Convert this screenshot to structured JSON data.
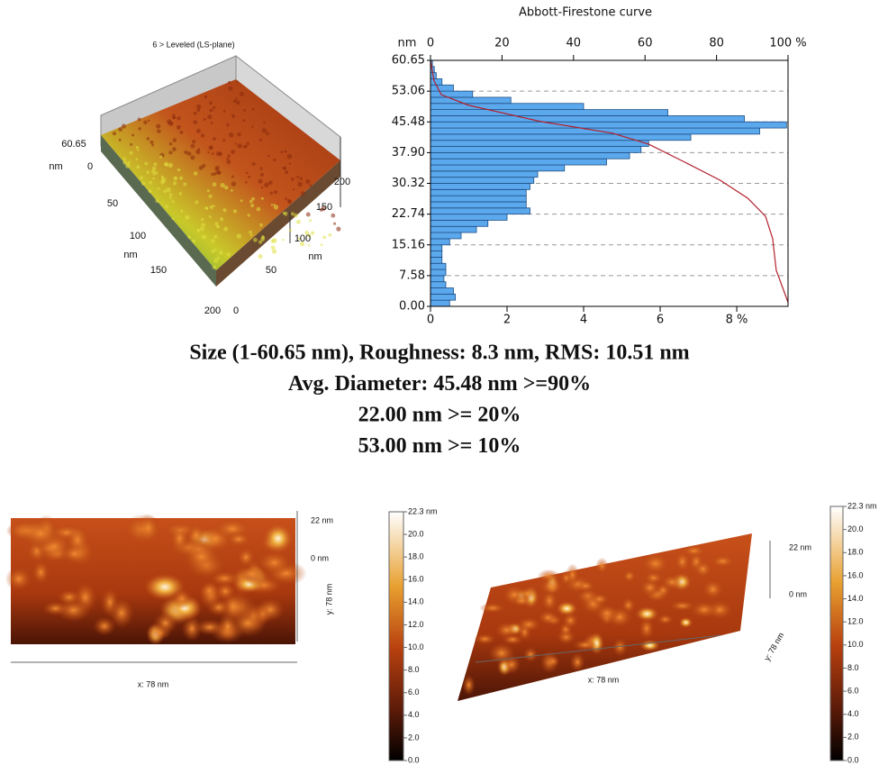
{
  "left_surface": {
    "title": "6 > Leveled (LS-plane)",
    "z_labels": [
      "60.65",
      "nm",
      "0"
    ],
    "x_labels": [
      "50",
      "100",
      "nm",
      "150",
      "200"
    ],
    "y_labels": [
      "0",
      "50",
      "100",
      "nm",
      "150",
      "200"
    ]
  },
  "chart_data": {
    "type": "histogram",
    "orientation": "horizontal",
    "title": "Abbott-Firestone curve",
    "ylabel": "nm",
    "bins": [
      0,
      1.52,
      3.03,
      4.55,
      6.07,
      7.58,
      9.1,
      10.61,
      12.13,
      13.65,
      15.16,
      16.68,
      18.2,
      19.71,
      21.23,
      22.74,
      24.26,
      25.78,
      27.29,
      28.81,
      30.33,
      31.84,
      33.36,
      34.87,
      36.39,
      37.91,
      39.42,
      40.94,
      42.46,
      43.97,
      45.49,
      47,
      48.52,
      50.04,
      51.55,
      53.07,
      54.59,
      56.1,
      57.62,
      59.13,
      60.65
    ],
    "values": [
      0.5,
      0.65,
      0.6,
      0.4,
      0.35,
      0.4,
      0.4,
      0.3,
      0.3,
      0.3,
      0.5,
      0.8,
      1.2,
      1.5,
      2,
      2.6,
      2.5,
      2.5,
      2.5,
      2.6,
      2.7,
      2.8,
      3.5,
      4.6,
      5.2,
      5.5,
      5.7,
      6.8,
      8.6,
      9.3,
      8.2,
      6.2,
      4,
      2.1,
      1.1,
      0.6,
      0.3,
      0.15,
      0.1,
      0.05
    ],
    "color": "#5ba8ec",
    "edge_color": "#1f4f86",
    "xlim": [
      0,
      9.34
    ],
    "xticks": [
      0,
      2,
      4,
      6,
      {
        "value": 8,
        "label": "8 %"
      }
    ],
    "x2lim": [
      0,
      100
    ],
    "x2ticks": [
      0,
      20,
      40,
      60,
      80,
      {
        "value": 100,
        "label": "100 %"
      }
    ],
    "ylim": [
      0,
      60.65
    ],
    "yticks": [
      {
        "value": 0,
        "label": "0.00"
      },
      7.58,
      15.16,
      22.74,
      30.32,
      {
        "value": 37.9,
        "label": "37.90"
      },
      45.48,
      53.06,
      60.65
    ],
    "grid": true,
    "curve": {
      "axis": "x2",
      "color": "#b3202c",
      "x": [
        0,
        1,
        3,
        10.6,
        30.7,
        50.9,
        61,
        71,
        81,
        88.7,
        93.7,
        95.7,
        96.7,
        100
      ],
      "y": [
        60.65,
        55.6,
        52.2,
        49.6,
        45.6,
        42.7,
        40,
        35.6,
        31.1,
        26.7,
        22.2,
        16.7,
        8.9,
        1
      ]
    }
  },
  "caption": [
    "Size (1-60.65 nm), Roughness: 8.3 nm, RMS: 10.51 nm",
    "Avg. Diameter: 45.48 nm >=90%",
    "22.00 nm >= 20%",
    "53.00 nm >= 10%"
  ],
  "surface_a": {
    "z_labels": [
      "22 nm",
      "0 nm"
    ],
    "y_label": "y: 78 nm",
    "x_label": "x: 78 nm",
    "colorbar": [
      "22.3 nm",
      "20.0",
      "18.0",
      "16.0",
      "14.0",
      "12.0",
      "10.0",
      "8.0",
      "6.0",
      "4.0",
      "2.0",
      "0.0"
    ]
  },
  "surface_b": {
    "z_labels": [
      "22 nm",
      "0 nm"
    ],
    "y_label": "y: 78 nm",
    "x_label": "x: 78 nm",
    "colorbar": [
      "22.3 nm",
      "20.0",
      "18.0",
      "16.0",
      "14.0",
      "12.0",
      "10.0",
      "8.0",
      "6.0",
      "4.0",
      "2.0",
      "0.0"
    ]
  }
}
